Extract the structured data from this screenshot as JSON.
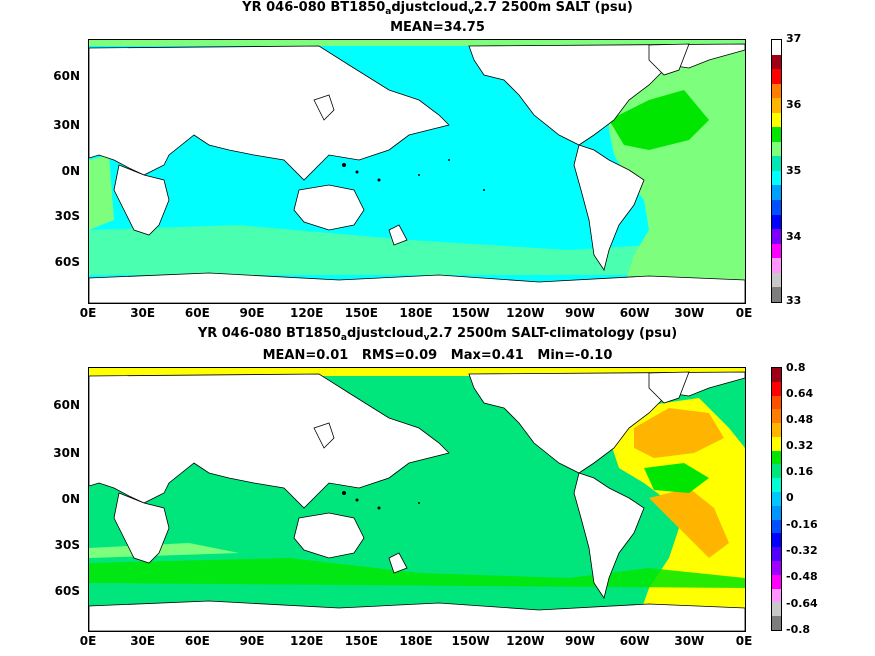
{
  "top_map": {
    "title_parts": [
      "YR 046-080 BT1850",
      "a",
      "djustcloud",
      "v",
      "2.7 2500m SALT (psu)"
    ],
    "subtitle": "MEAN=34.75",
    "y_labels": [
      "60N",
      "30N",
      "0N",
      "30S",
      "60S"
    ],
    "x_labels": [
      "0E",
      "30E",
      "60E",
      "90E",
      "120E",
      "150E",
      "180E",
      "150W",
      "120W",
      "90W",
      "60W",
      "30W",
      "0E"
    ],
    "colorbar_labels": [
      "37",
      "36",
      "35",
      "34",
      "33"
    ],
    "colorbar_colors": [
      "#ffffff",
      "#9e0016",
      "#ff0000",
      "#ff7d00",
      "#ffb400",
      "#ffff00",
      "#00e600",
      "#7dff7d",
      "#00e6b4",
      "#00ffff",
      "#00a0ff",
      "#0050ff",
      "#0000ff",
      "#7d00ff",
      "#ff00ff",
      "#ff96ff",
      "#c8c8c8",
      "#7d7d7d"
    ],
    "colors": {
      "ocean": "#00ffff",
      "atlantic": "#7dff7d",
      "atlantic_core": "#00e600",
      "land": "#ffffff"
    }
  },
  "bottom_map": {
    "title_parts": [
      "YR 046-080 BT1850",
      "a",
      "djustcloud",
      "v",
      "2.7 2500m SALT-climatology (psu)"
    ],
    "subtitle": "MEAN=0.01   RMS=0.09   Max=0.41   Min=-0.10",
    "y_labels": [
      "60N",
      "30N",
      "0N",
      "30S",
      "60S"
    ],
    "x_labels": [
      "0E",
      "30E",
      "60E",
      "90E",
      "120E",
      "150E",
      "180E",
      "150W",
      "120W",
      "90W",
      "60W",
      "30W",
      "0E"
    ],
    "colorbar_labels": [
      "0.8",
      "0.64",
      "0.48",
      "0.32",
      "0.16",
      "0",
      "-0.16",
      "-0.32",
      "-0.48",
      "-0.64",
      "-0.8"
    ],
    "colorbar_colors": [
      "#9e0016",
      "#ff0000",
      "#ff5000",
      "#ff7d00",
      "#ffb400",
      "#ffff00",
      "#00e600",
      "#00e67d",
      "#00ffd2",
      "#00c8ff",
      "#0096ff",
      "#0050ff",
      "#0000ff",
      "#5000ff",
      "#a000ff",
      "#ff00ff",
      "#ff96ff",
      "#c8c8c8",
      "#7d7d7d"
    ],
    "colors": {
      "ocean": "#00e67d",
      "positive": "#ffff00",
      "strong_positive": "#ffb400",
      "core": "#00e600",
      "land": "#ffffff"
    }
  }
}
